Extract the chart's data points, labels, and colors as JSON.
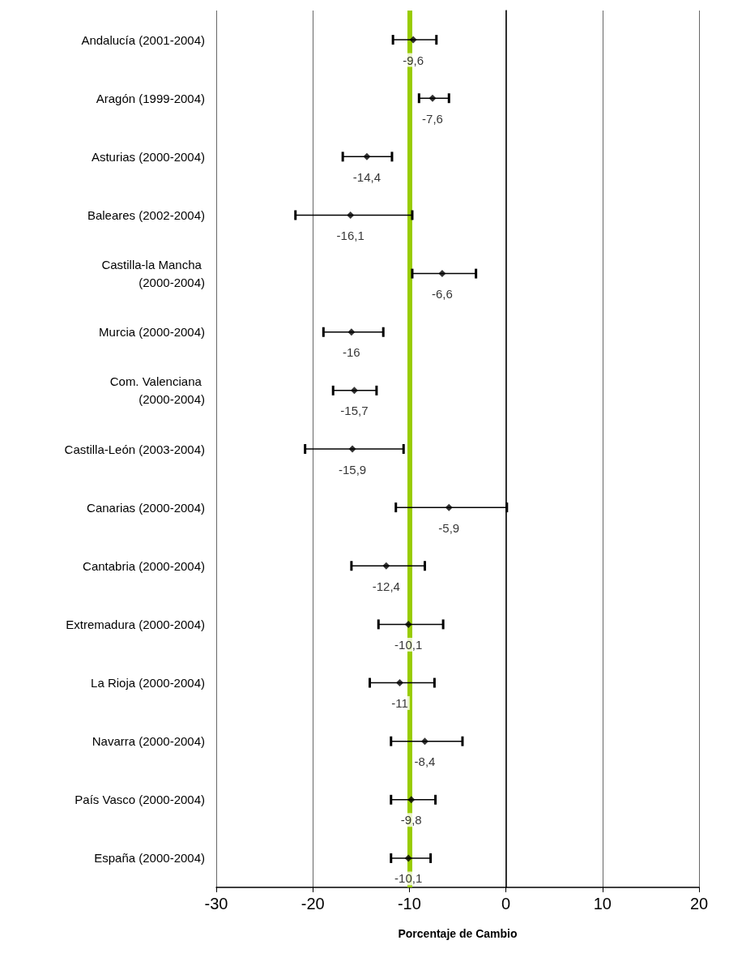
{
  "chart_data": {
    "type": "scatter",
    "orientation": "horizontal",
    "xlabel": "Porcentaje de Cambio",
    "categories": [
      "Andalucía (2001-2004)",
      "Aragón (1999-2004)",
      "Asturias (2000-2004)",
      "Baleares (2002-2004)",
      "Castilla-la Mancha (2000-2004)",
      "Murcia (2000-2004)",
      "Com. Valenciana (2000-2004)",
      "Castilla-León (2003-2004)",
      "Canarias (2000-2004)",
      "Cantabria (2000-2004)",
      "Extremadura (2000-2004)",
      "La Rioja (2000-2004)",
      "Navarra (2000-2004)",
      "País Vasco (2000-2004)",
      "España (2000-2004)"
    ],
    "series": [
      {
        "color": "#000000",
        "values": [
          -9.6,
          -7.6,
          -14.4,
          -16.1,
          -6.6,
          -16,
          -15.7,
          -15.9,
          -5.9,
          -12.4,
          -10.1,
          -11,
          -8.4,
          -9.8,
          -10.1
        ],
        "errors": [
          [
            -11.7,
            -7.2
          ],
          [
            -9,
            -5.9
          ],
          [
            -16.9,
            -11.8
          ],
          [
            -21.8,
            -9.7
          ],
          [
            -9.7,
            -3.1
          ],
          [
            -18.9,
            -12.7
          ],
          [
            -17.9,
            -13.4
          ],
          [
            -20.8,
            -10.6
          ],
          [
            -11.4,
            0.1
          ],
          [
            -16,
            -8.4
          ],
          [
            -13.2,
            -6.5
          ],
          [
            -14.1,
            -7.4
          ],
          [
            -11.9,
            -4.5
          ],
          [
            -11.9,
            -7.3
          ],
          [
            -11.9,
            -7.8
          ]
        ],
        "value_labels": [
          "-9,6",
          "-7,6",
          "-14,4",
          "-16,1",
          "-6,6",
          "-16",
          "-15,7",
          "-15,9",
          "-5,9",
          "-12,4",
          "-10,1",
          "-11",
          "-8,4",
          "-9,8",
          "-10,1"
        ]
      }
    ],
    "xlim": [
      -30,
      20
    ],
    "xticks": [
      -30,
      -20,
      -10,
      0,
      10,
      20
    ],
    "grid": "x",
    "marker": "diamond",
    "ref_lines": [
      {
        "axis": "x",
        "value": -10,
        "color": "#99cc00"
      }
    ]
  }
}
